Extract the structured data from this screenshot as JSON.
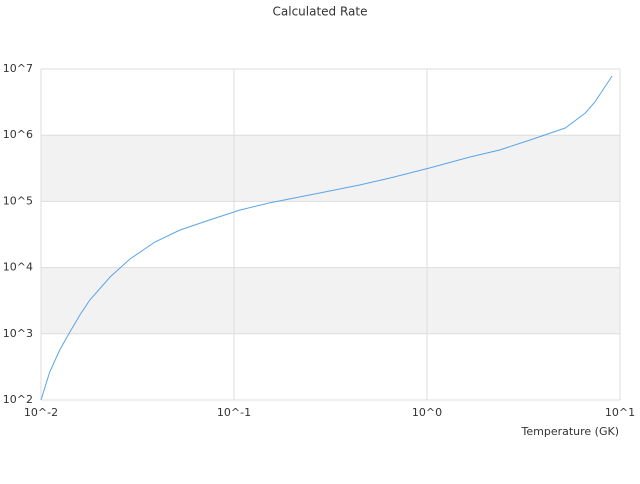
{
  "chart_data": {
    "type": "line",
    "title": "Calculated Rate",
    "x_label": "Temperature (GK)",
    "x": [
      0.01,
      0.0111,
      0.0125,
      0.0141,
      0.0159,
      0.0179,
      0.0228,
      0.0289,
      0.0389,
      0.0525,
      0.075,
      0.107,
      0.153,
      0.278,
      0.447,
      0.64,
      1.03,
      1.67,
      2.38,
      3.42,
      5.2,
      6.6,
      7.4,
      9.1
    ],
    "series": [
      {
        "color": "#5aa5e6",
        "values": [
          100,
          265,
          570,
          1060,
          1920,
          3240,
          7200,
          13500,
          24400,
          37000,
          52500,
          74000,
          95000,
          134000,
          177000,
          225000,
          320000,
          468000,
          597000,
          845000,
          1285000,
          2160000,
          3160000,
          7830000
        ]
      }
    ],
    "xlim": [
      0.01,
      10
    ],
    "ylim": [
      100,
      10000000
    ],
    "log_x": true,
    "log_y": true,
    "bands": true,
    "xticks": [
      {
        "value": 0.01,
        "label": "10^-2"
      },
      {
        "value": 0.1,
        "label": "10^-1"
      },
      {
        "value": 1,
        "label": "10^0"
      },
      {
        "value": 10,
        "label": "10^1"
      }
    ],
    "yticks": [
      {
        "value": 100,
        "label": "10^2"
      },
      {
        "value": 1000,
        "label": "10^3"
      },
      {
        "value": 10000,
        "label": "10^4"
      },
      {
        "value": 100000,
        "label": "10^5"
      },
      {
        "value": 1000000,
        "label": "10^6"
      },
      {
        "value": 10000000,
        "label": "10^7"
      }
    ]
  }
}
